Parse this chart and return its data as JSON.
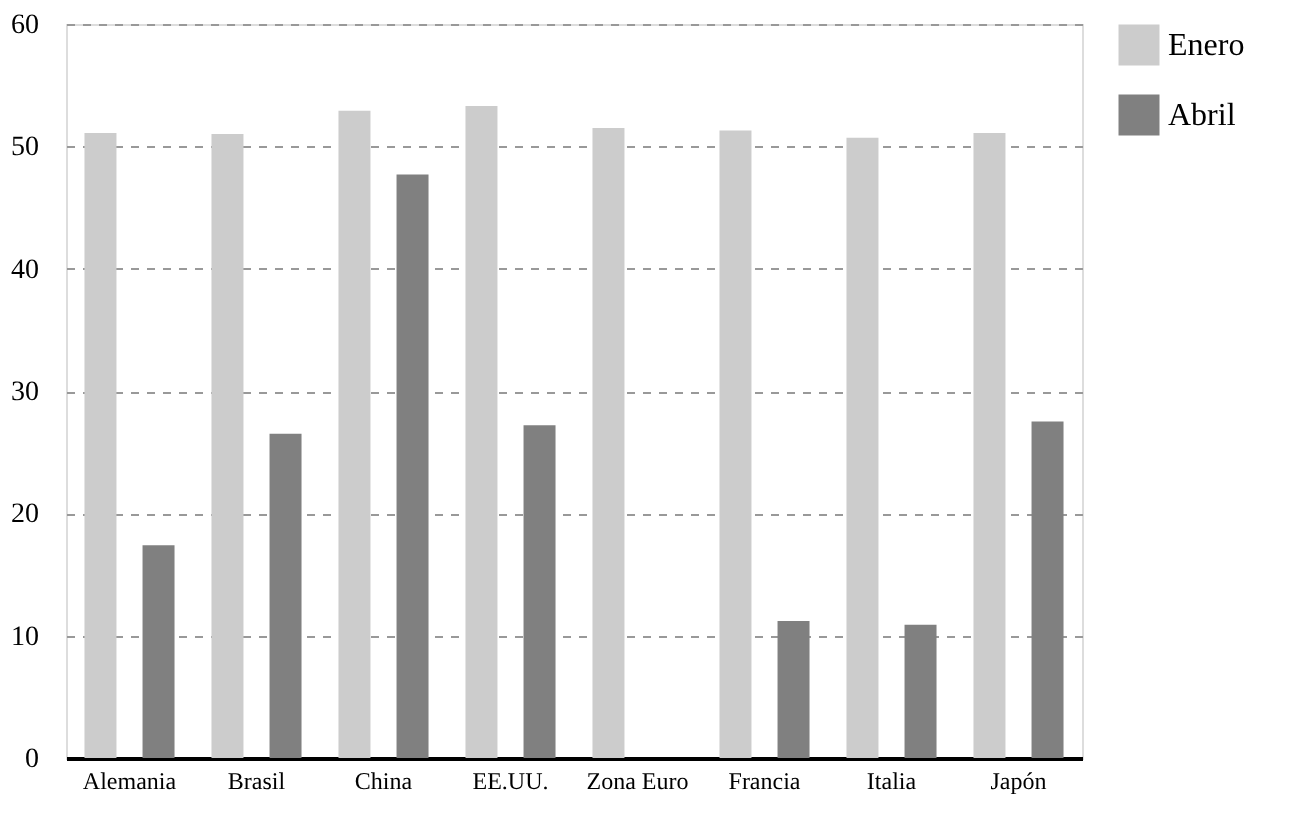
{
  "chart_data": {
    "type": "bar",
    "categories": [
      "Alemania",
      "Brasil",
      "China",
      "EE.UU.",
      "Zona Euro",
      "Francia",
      "Italia",
      "Japón"
    ],
    "series": [
      {
        "name": "Enero",
        "color": "#cccccc",
        "values": [
          51.1,
          51.0,
          52.9,
          53.3,
          51.5,
          51.3,
          50.7,
          51.1
        ]
      },
      {
        "name": "Abril",
        "color": "#808080",
        "values": [
          17.4,
          26.5,
          47.7,
          27.2,
          null,
          11.2,
          10.9,
          27.5
        ]
      }
    ],
    "ylim": [
      0,
      60
    ],
    "yticks": [
      0,
      10,
      20,
      30,
      40,
      50,
      60
    ],
    "grid": "y",
    "legend": "right"
  }
}
